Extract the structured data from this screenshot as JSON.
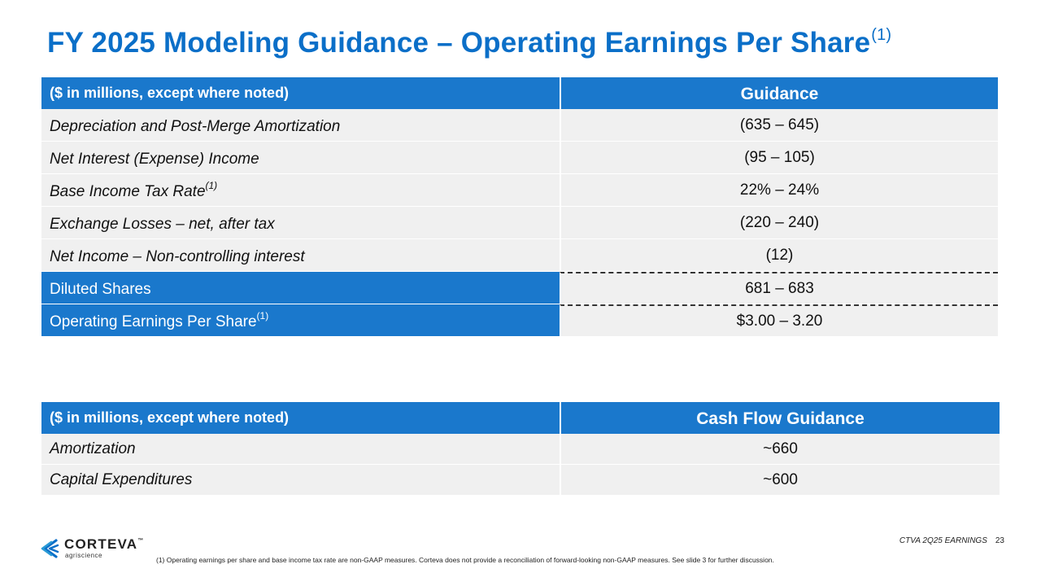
{
  "title": {
    "text": "FY 2025 Modeling Guidance – Operating Earnings Per Share",
    "sup": "(1)"
  },
  "table1": {
    "header_left": "($ in millions, except where noted)",
    "header_right": "Guidance",
    "rows": [
      {
        "label": "Depreciation and Post-Merge Amortization",
        "sup": "",
        "value": "(635 – 645)"
      },
      {
        "label": "Net Interest (Expense) Income",
        "sup": "",
        "value": "(95 – 105)"
      },
      {
        "label": "Base Income Tax Rate",
        "sup": "(1)",
        "value": "22% – 24%"
      },
      {
        "label": "Exchange Losses – net, after tax",
        "sup": "",
        "value": "(220 – 240)"
      },
      {
        "label": "Net Income – Non-controlling interest",
        "sup": "",
        "value": "(12)"
      },
      {
        "label": "Diluted Shares",
        "sup": "",
        "value": "681 – 683"
      },
      {
        "label": "Operating Earnings Per Share",
        "sup": "(1)",
        "value": "$3.00 – 3.20"
      }
    ]
  },
  "table2": {
    "header_left": "($ in millions, except where noted)",
    "header_right": "Cash Flow Guidance",
    "rows": [
      {
        "label": "Amortization",
        "value": "~660"
      },
      {
        "label": "Capital Expenditures",
        "value": "~600"
      }
    ]
  },
  "footer": {
    "logo_text": "CORTEVA",
    "logo_tm": "™",
    "logo_sub": "agriscience",
    "footnote": "(1) Operating earnings per share and base income tax rate are non-GAAP measures. Corteva does not provide a reconciliation of forward-looking non-GAAP measures.  See slide 3 for further discussion.",
    "label": "CTVA 2Q25 EARNINGS",
    "page": "23"
  },
  "colors": {
    "accent": "#1a78cc",
    "title": "#0b6fc8",
    "row_bg": "#f0f0f0"
  }
}
